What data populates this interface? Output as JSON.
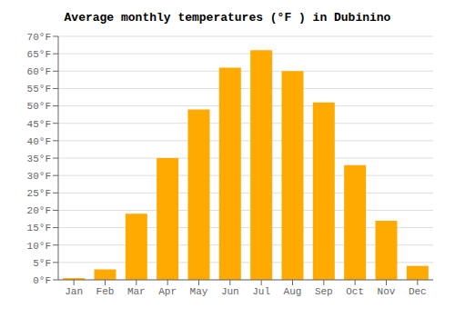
{
  "chart_data": {
    "type": "bar",
    "title": "Average monthly temperatures (°F ) in Dubinino",
    "categories": [
      "Jan",
      "Feb",
      "Mar",
      "Apr",
      "May",
      "Jun",
      "Jul",
      "Aug",
      "Sep",
      "Oct",
      "Nov",
      "Dec"
    ],
    "values": [
      0.5,
      3,
      19,
      35,
      49,
      61,
      66,
      60,
      51,
      33,
      17,
      4
    ],
    "color": "#FFAA00",
    "ylim": [
      0,
      70
    ],
    "yticks": [
      {
        "value": 0,
        "label": "0°F"
      },
      {
        "value": 5,
        "label": "5°F"
      },
      {
        "value": 10,
        "label": "10°F"
      },
      {
        "value": 15,
        "label": "15°F"
      },
      {
        "value": 20,
        "label": "20°F"
      },
      {
        "value": 25,
        "label": "25°F"
      },
      {
        "value": 30,
        "label": "30°F"
      },
      {
        "value": 35,
        "label": "35°F"
      },
      {
        "value": 40,
        "label": "40°F"
      },
      {
        "value": 45,
        "label": "45°F"
      },
      {
        "value": 50,
        "label": "50°F"
      },
      {
        "value": 55,
        "label": "55°F"
      },
      {
        "value": 60,
        "label": "60°F"
      },
      {
        "value": 65,
        "label": "65°F"
      },
      {
        "value": 70,
        "label": "70°F"
      }
    ],
    "grid": true
  }
}
